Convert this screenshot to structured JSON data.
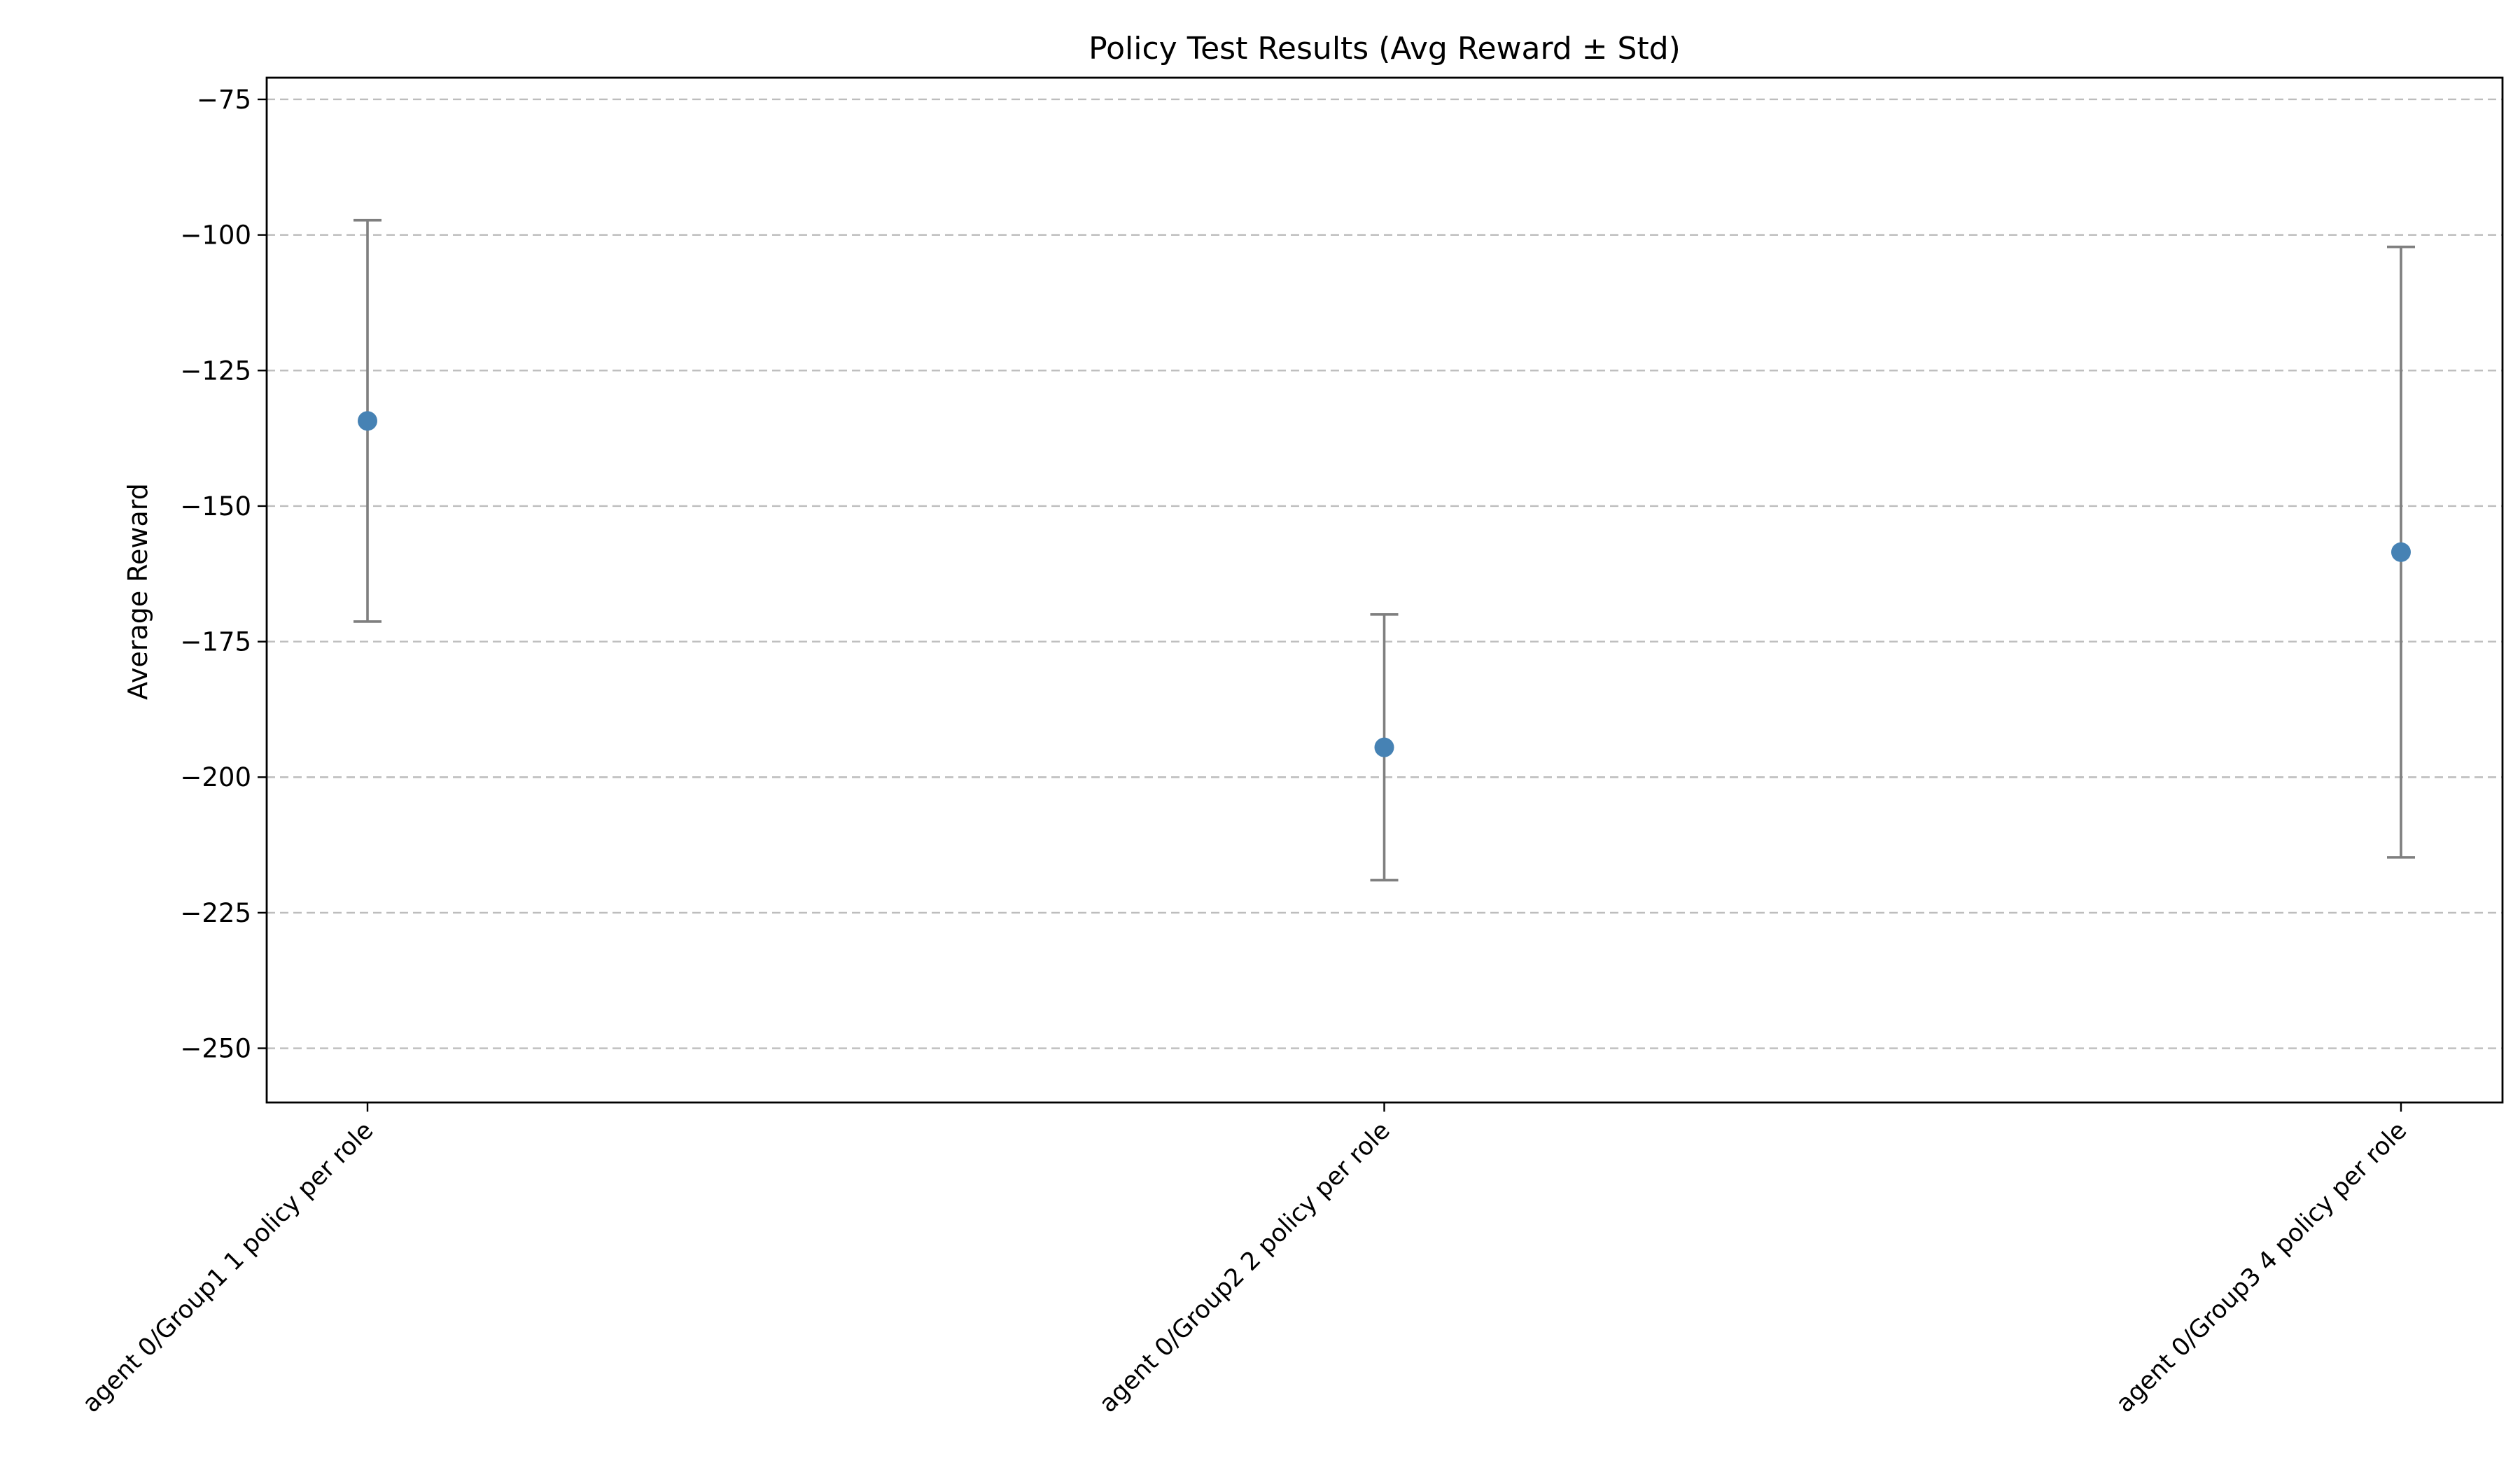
{
  "chart_data": {
    "type": "scatter",
    "title": "Policy Test Results (Avg Reward ± Std)",
    "xlabel": "",
    "ylabel": "Average Reward",
    "categories": [
      "agent 0/Group1 1 policy per role",
      "agent 0/Group2 2 policy per role",
      "agent 0/Group3 4 policy per role"
    ],
    "values": [
      -134.3,
      -194.5,
      -158.5
    ],
    "std": [
      37.0,
      24.5,
      56.3
    ],
    "ylim": [
      -260,
      -71
    ],
    "yticks": [
      -75,
      -100,
      -125,
      -150,
      -175,
      -200,
      -225,
      -250
    ],
    "ytick_labels": [
      "−75",
      "−100",
      "−125",
      "−150",
      "−175",
      "−200",
      "−225",
      "−250"
    ],
    "grid": "y-dashed",
    "marker_color": "#4682b4",
    "errorbar_color": "#7f7f7f"
  }
}
